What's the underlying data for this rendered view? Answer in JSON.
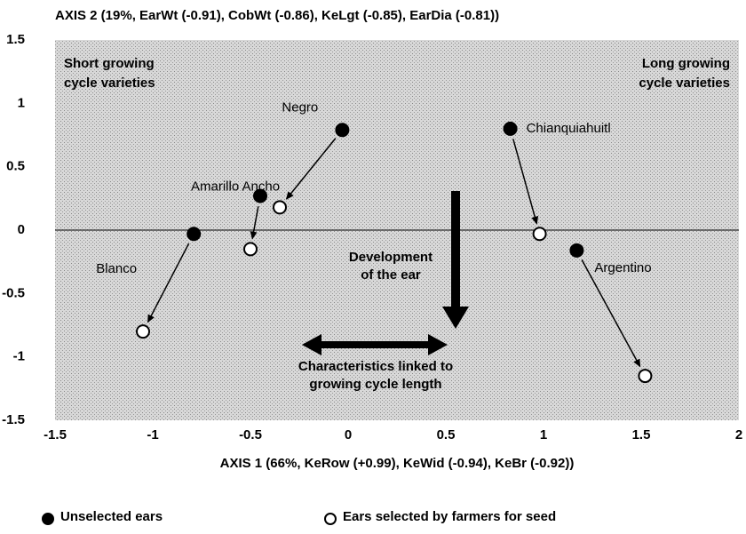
{
  "chart_data": {
    "type": "scatter",
    "title": "AXIS 2 (19%, EarWt (-0.91), CobWt (-0.86), KeLgt (-0.85), EarDia (-0.81))",
    "x_label": "AXIS 1 (66%, KeRow (+0.99), KeWid (-0.94), KeBr (-0.92))",
    "xlim": [
      -1.5,
      2
    ],
    "xticks": [
      -1.5,
      -1,
      -0.5,
      0,
      0.5,
      1,
      1.5,
      2
    ],
    "ylim": [
      -1.5,
      1.5
    ],
    "yticks": [
      -1.5,
      -1,
      -0.5,
      0,
      0.5,
      1,
      1.5
    ],
    "point_labels": [
      "Negro",
      "Amarillo Ancho",
      "Blanco",
      "Chianquiahuitl",
      "Argentino"
    ],
    "series": [
      {
        "name": "Unselected ears",
        "color": "#000000",
        "x": [
          -0.03,
          -0.45,
          -0.79,
          0.83,
          1.17
        ],
        "values": [
          0.79,
          0.27,
          -0.03,
          0.8,
          -0.16
        ]
      },
      {
        "name": "Ears selected by farmers for seed",
        "color": "#ffffff",
        "x": [
          -0.35,
          -0.5,
          -1.05,
          0.98,
          1.52
        ],
        "values": [
          0.18,
          -0.15,
          -0.8,
          -0.03,
          -1.15
        ]
      }
    ],
    "annotations": [
      "Short growing cycle varieties",
      "Long growing cycle varieties",
      "Development of the ear",
      "Characteristics linked to growing cycle length"
    ]
  }
}
